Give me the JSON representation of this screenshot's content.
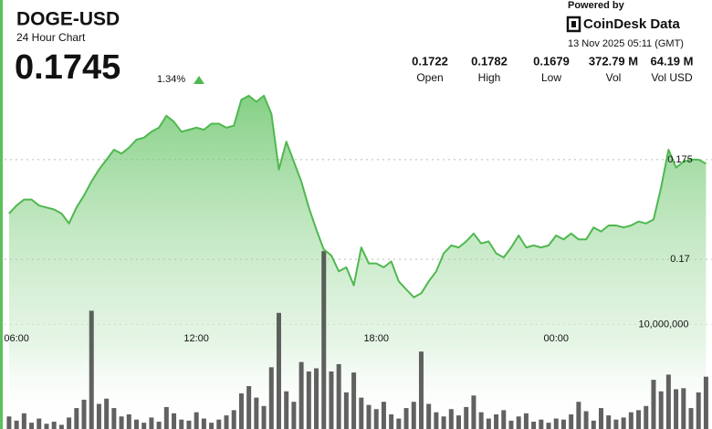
{
  "header": {
    "title": "DOGE-USD",
    "subtitle": "24 Hour Chart",
    "price": 0.1745,
    "change": "1.34%",
    "powered_by": "Powered by",
    "brand": "CoinDesk Data",
    "timestamp": "13 Nov 2025 05:11 (GMT)"
  },
  "stats": [
    {
      "value": "0.1722",
      "label": "Open"
    },
    {
      "value": "0.1782",
      "label": "High"
    },
    {
      "value": "0.1679",
      "label": "Low"
    },
    {
      "value": "372.79 M",
      "label": "Vol"
    },
    {
      "value": "64.19 M",
      "label": "Vol USD"
    }
  ],
  "chart_data": {
    "type": "area",
    "x": [
      5.75,
      6.0,
      6.25,
      6.5,
      6.75,
      7.0,
      7.25,
      7.5,
      7.75,
      8.0,
      8.25,
      8.5,
      8.75,
      9.0,
      9.25,
      9.5,
      9.75,
      10.0,
      10.25,
      10.5,
      10.75,
      11.0,
      11.25,
      11.5,
      11.75,
      12.0,
      12.25,
      12.5,
      12.75,
      13.0,
      13.25,
      13.5,
      13.75,
      14.0,
      14.25,
      14.5,
      14.75,
      15.0,
      15.25,
      15.5,
      15.75,
      16.0,
      16.25,
      16.5,
      16.75,
      17.0,
      17.25,
      17.5,
      17.75,
      18.0,
      18.25,
      18.5,
      18.75,
      19.0,
      19.25,
      19.5,
      19.75,
      20.0,
      20.25,
      20.5,
      20.75,
      21.0,
      21.25,
      21.5,
      21.75,
      22.0,
      22.25,
      22.5,
      22.75,
      23.0,
      23.25,
      23.5,
      23.75,
      24.0,
      24.25,
      24.5,
      24.75,
      25.0,
      25.25,
      25.5,
      25.75,
      26.0,
      26.25,
      26.5,
      26.75,
      27.0,
      27.25,
      27.5,
      27.75,
      28.0,
      28.25,
      28.5,
      28.75,
      29.0
    ],
    "xlim": [
      5.6,
      29.2
    ],
    "xticks": [
      {
        "value": 6,
        "label": "06:00"
      },
      {
        "value": 12,
        "label": "12:00"
      },
      {
        "value": 18,
        "label": "18:00"
      },
      {
        "value": 24,
        "label": "00:00"
      }
    ],
    "ylim": [
      0.1615,
      0.183
    ],
    "yticks": [
      0.175,
      0.17
    ],
    "y2lim": [
      0,
      41000000
    ],
    "y2ticks": [
      {
        "value": 10000000,
        "label": "10,000,000"
      }
    ],
    "grid": true,
    "series": [
      {
        "type": "area",
        "color": "#4fb84f",
        "values": [
          0.1723,
          0.1727,
          0.173,
          0.173,
          0.1727,
          0.1726,
          0.1725,
          0.1723,
          0.1718,
          0.1726,
          0.1732,
          0.1739,
          0.1745,
          0.175,
          0.1755,
          0.1753,
          0.1756,
          0.176,
          0.1761,
          0.1764,
          0.1766,
          0.1772,
          0.1769,
          0.1764,
          0.1765,
          0.1766,
          0.1765,
          0.1768,
          0.1768,
          0.1766,
          0.1767,
          0.178,
          0.1782,
          0.1779,
          0.1782,
          0.1773,
          0.1745,
          0.1759,
          0.1749,
          0.1739,
          0.1726,
          0.1715,
          0.1705,
          0.1702,
          0.1694,
          0.1696,
          0.1687,
          0.1706,
          0.1698,
          0.1698,
          0.1696,
          0.1699,
          0.1689,
          0.1685,
          0.1681,
          0.1683,
          0.1689,
          0.1694,
          0.1703,
          0.1707,
          0.1706,
          0.1709,
          0.1713,
          0.1708,
          0.1709,
          0.1703,
          0.1701,
          0.1706,
          0.1712,
          0.1706,
          0.1707,
          0.1706,
          0.1707,
          0.1712,
          0.171,
          0.1713,
          0.171,
          0.171,
          0.1716,
          0.1714,
          0.1717,
          0.1717,
          0.1716,
          0.1717,
          0.1719,
          0.1718,
          0.172,
          0.1736,
          0.1755,
          0.1746,
          0.1749,
          0.175,
          0.175,
          0.1748
        ]
      },
      {
        "type": "bar",
        "axis": "y2",
        "color": "#3a3a3a",
        "values": [
          1200000,
          800000,
          1500000,
          600000,
          1000000,
          500000,
          700000,
          400000,
          1100000,
          2000000,
          2800000,
          11300000,
          2400000,
          2900000,
          2000000,
          1200000,
          1400000,
          900000,
          600000,
          1100000,
          700000,
          2100000,
          1500000,
          900000,
          800000,
          1600000,
          1000000,
          600000,
          900000,
          1300000,
          1800000,
          3400000,
          4100000,
          3000000,
          2200000,
          5900000,
          11100000,
          3600000,
          2600000,
          6400000,
          5500000,
          5800000,
          17000000,
          5500000,
          6200000,
          3500000,
          5400000,
          3000000,
          2300000,
          1900000,
          2600000,
          1400000,
          1000000,
          2000000,
          2600000,
          7400000,
          2400000,
          1600000,
          1200000,
          1900000,
          1300000,
          2100000,
          3200000,
          1600000,
          1000000,
          1400000,
          1800000,
          800000,
          1200000,
          1500000,
          700000,
          900000,
          600000,
          1000000,
          900000,
          1400000,
          2600000,
          1700000,
          800000,
          2000000,
          1300000,
          900000,
          1100000,
          1600000,
          1800000,
          2200000,
          4700000,
          3600000,
          5200000,
          3800000,
          3900000,
          2000000,
          3500000,
          5000000
        ]
      }
    ]
  }
}
